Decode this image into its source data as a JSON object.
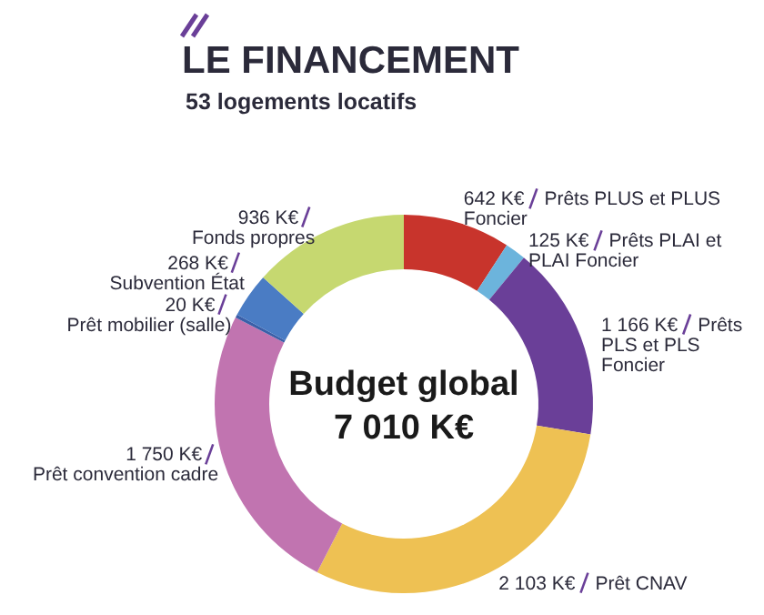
{
  "chart_data": {
    "type": "donut",
    "title": "LE FINANCEMENT",
    "subtitle": "53 logements locatifs",
    "categories": [
      "Prêts PLUS et PLUS Foncier",
      "Prêts PLAI et PLAI Foncier",
      "Prêts PLS et PLS Foncier",
      "Prêt CNAV",
      "Prêt convention cadre",
      "Prêt mobilier (salle)",
      "Subvention État",
      "Fonds propres"
    ],
    "values": [
      642,
      125,
      1166,
      2103,
      1750,
      20,
      268,
      936
    ],
    "value_labels": [
      "642 K€",
      "125 K€",
      "1 166 K€",
      "2 103 K€",
      "1 750 K€",
      "20 K€",
      "268 K€",
      "936 K€"
    ],
    "colors": [
      "#c8342c",
      "#6cb4dc",
      "#6a3f98",
      "#eec153",
      "#c174b0",
      "#3a5fa8",
      "#4a7cc4",
      "#c6d870"
    ],
    "annotations": [
      "Budget global",
      "7 010 K€"
    ]
  }
}
